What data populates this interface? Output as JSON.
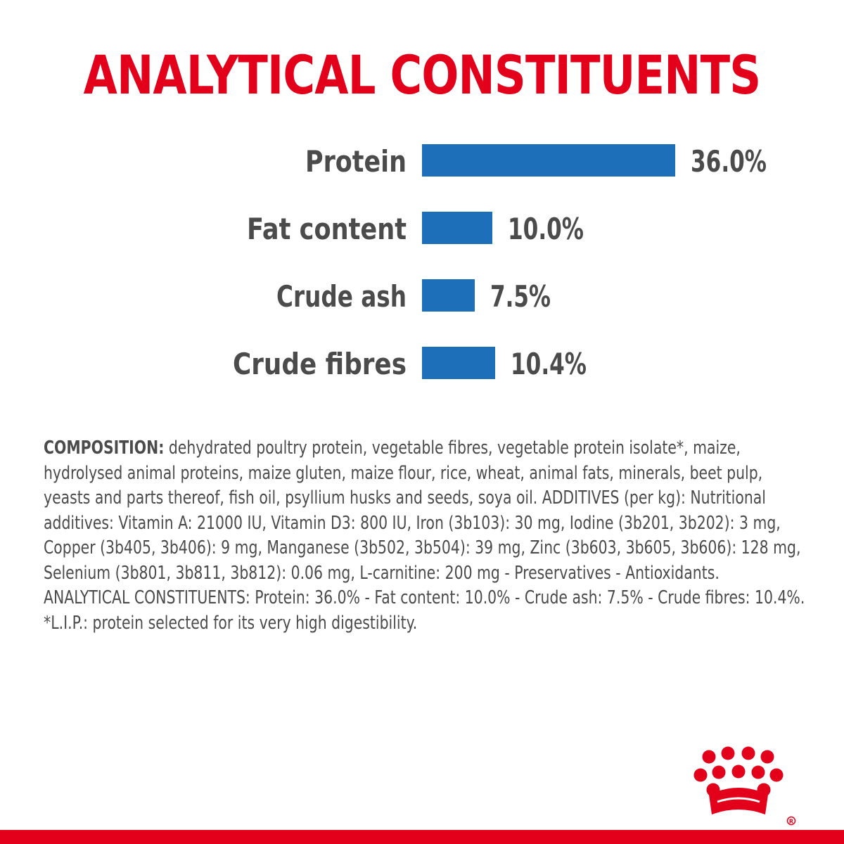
{
  "title": "ANALYTICAL CONSTITUENTS",
  "colors": {
    "title": "#e2001a",
    "bar": "#1e6fb9",
    "text": "#4b4b4b",
    "brand": "#e2001a"
  },
  "chart_data": {
    "type": "bar",
    "orientation": "horizontal",
    "title": "ANALYTICAL CONSTITUENTS",
    "categories": [
      "Protein",
      "Fat content",
      "Crude ash",
      "Crude fibres"
    ],
    "values": [
      36.0,
      10.0,
      7.5,
      10.4
    ],
    "value_labels": [
      "36.0%",
      "10.0%",
      "7.5%",
      "10.4%"
    ],
    "unit": "%",
    "grid": false,
    "legend": "none"
  },
  "composition": {
    "label": "COMPOSITION:",
    "text": " dehydrated poultry protein, vegetable fibres, vegetable protein isolate*, maize, hydrolysed animal proteins, maize gluten, maize flour, rice, wheat, animal fats, minerals, beet pulp, yeasts and parts thereof, fish oil, psyllium husks and seeds, soya oil. ADDITIVES (per kg): Nutritional additives: Vitamin A: 21000 IU, Vitamin D3: 800 IU, Iron (3b103): 30 mg, Iodine (3b201, 3b202): 3 mg, Copper (3b405, 3b406): 9 mg, Manganese (3b502, 3b504): 39 mg, Zinc (3b603, 3b605, 3b606): 128 mg, Selenium (3b801, 3b811, 3b812): 0.06 mg, L-carnitine: 200 mg - Preservatives - Antioxidants. ANALYTICAL CONSTITUENTS: Protein: 36.0% - Fat content: 10.0% - Crude ash: 7.5% - Crude fibres: 10.4%.",
    "footnote": "*L.I.P.: protein selected for its very high digestibility."
  },
  "logo": {
    "icon": "royal-canin-crown-icon",
    "registered_mark": "®"
  }
}
